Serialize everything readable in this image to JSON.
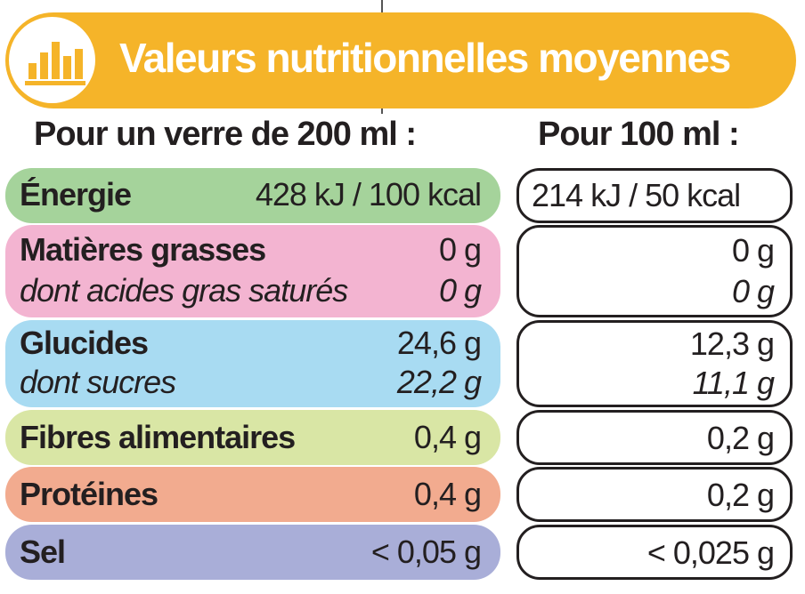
{
  "header": {
    "title": "Valeurs nutritionnelles moyennes",
    "col1": "Pour un verre de 200 ml :",
    "col2": "Pour 100 ml :",
    "icon": "bar-chart-icon",
    "accent_color": "#f5b429"
  },
  "rows": [
    {
      "label": "Énergie",
      "v200": "428 kJ / 100 kcal",
      "v100": "214 kJ / 50 kcal",
      "color": "#a5d39b"
    },
    {
      "label": "Matières grasses",
      "v200": "0 g",
      "v100": "0 g",
      "sub_label": "dont acides gras saturés",
      "sub_v200": "0 g",
      "sub_v100": "0 g",
      "color": "#f3b4d1"
    },
    {
      "label": "Glucides",
      "v200": "24,6 g",
      "v100": "12,3 g",
      "sub_label": "dont sucres",
      "sub_v200": "22,2 g",
      "sub_v100": "11,1 g",
      "color": "#a8dbf2"
    },
    {
      "label": "Fibres alimentaires",
      "v200": "0,4 g",
      "v100": "0,2 g",
      "color": "#d9e6a5"
    },
    {
      "label": "Protéines",
      "v200": "0,4 g",
      "v100": "0,2 g",
      "color": "#f2ab8f"
    },
    {
      "label": "Sel",
      "v200": "< 0,05 g",
      "v100": "< 0,025 g",
      "color": "#a9aed8"
    }
  ]
}
